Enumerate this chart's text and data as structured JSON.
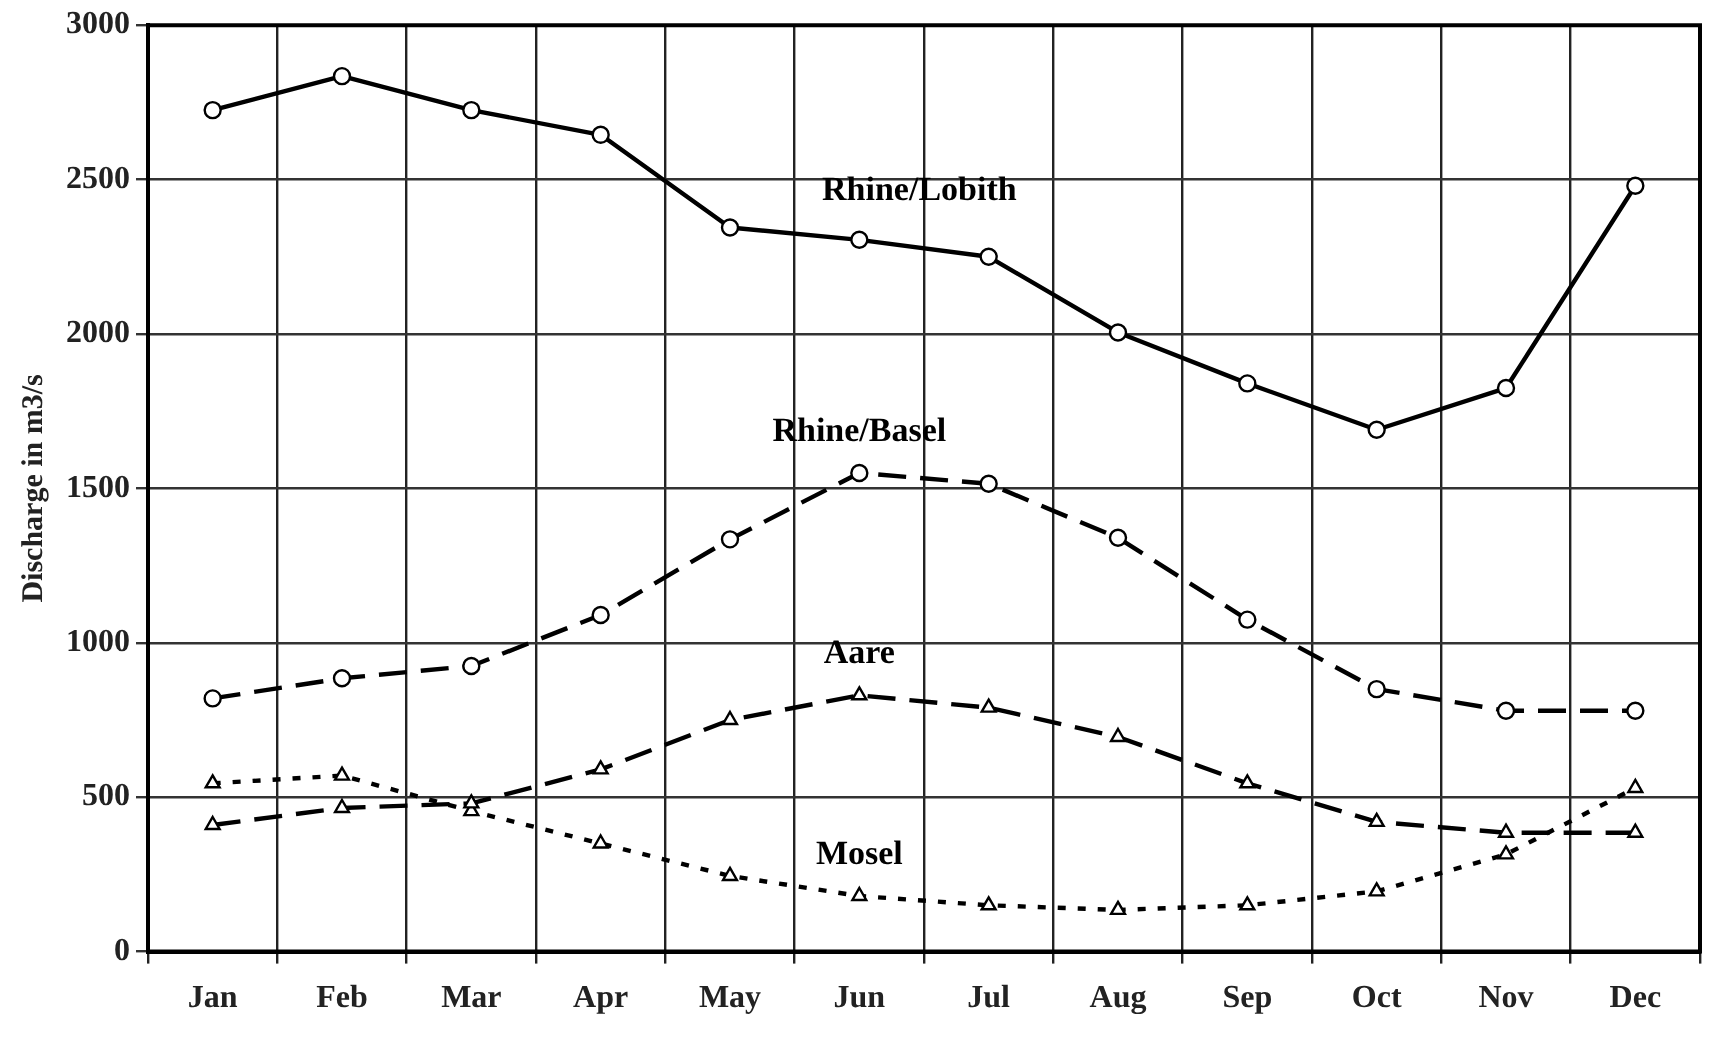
{
  "chart_data": {
    "type": "line",
    "ylabel": "Discharge in m3/s",
    "categories": [
      "Jan",
      "Feb",
      "Mar",
      "Apr",
      "May",
      "Jun",
      "Jul",
      "Aug",
      "Sep",
      "Oct",
      "Nov",
      "Dec"
    ],
    "series": [
      {
        "name": "Rhine/Lobith",
        "color": "#000000",
        "marker": "circle",
        "line_style": "solid",
        "values": [
          2725,
          2835,
          2725,
          2645,
          2345,
          2305,
          2250,
          2005,
          1840,
          1690,
          1825,
          2480
        ]
      },
      {
        "name": "Rhine/Basel",
        "color": "#000000",
        "marker": "circle",
        "line_style": "dashed",
        "values": [
          820,
          885,
          925,
          1090,
          1335,
          1550,
          1515,
          1340,
          1075,
          850,
          780,
          780
        ]
      },
      {
        "name": "Aare",
        "color": "#000000",
        "marker": "triangle",
        "line_style": "dashed",
        "values": [
          410,
          465,
          480,
          590,
          750,
          830,
          790,
          695,
          545,
          420,
          385,
          385
        ]
      },
      {
        "name": "Mosel",
        "color": "#000000",
        "marker": "triangle",
        "line_style": "dotted",
        "values": [
          545,
          570,
          455,
          350,
          245,
          180,
          150,
          135,
          150,
          195,
          315,
          530
        ]
      }
    ],
    "ylim": [
      0,
      3000
    ],
    "yticks": [
      0,
      500,
      1000,
      1500,
      2000,
      2500,
      3000
    ],
    "grid": true,
    "legend": false
  }
}
